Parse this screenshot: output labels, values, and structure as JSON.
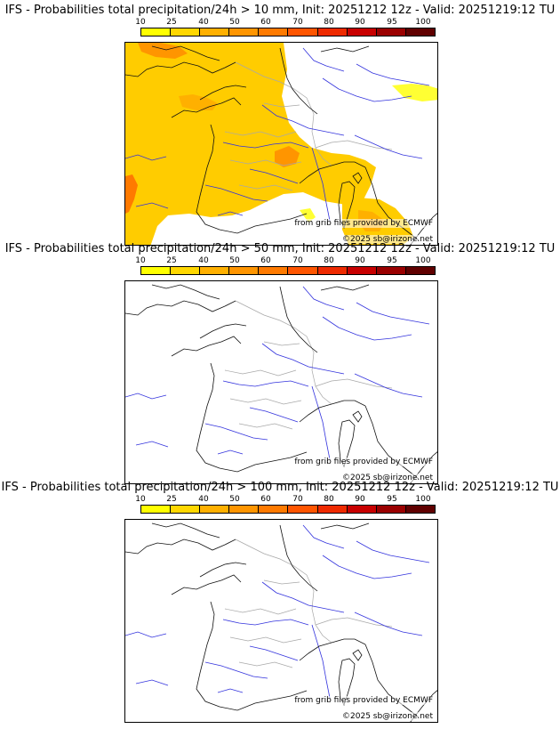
{
  "colorbar": {
    "labels": [
      "10",
      "25",
      "40",
      "50",
      "60",
      "70",
      "80",
      "90",
      "95",
      "100"
    ],
    "colors": [
      "#ffff00",
      "#ffd700",
      "#ffb000",
      "#ff9500",
      "#ff7a00",
      "#ff5500",
      "#ee2a00",
      "#c80000",
      "#9a0000",
      "#600000"
    ]
  },
  "panels": [
    {
      "title": "IFS - Probabilities total precipitation/24h > 10 mm, Init: 20251212 12z - Valid: 20251219:12 TU",
      "source_credit": "from grib files provided by ECMWF",
      "copyright": "©2025 sb@irizone.net",
      "has_precip": true
    },
    {
      "title": "IFS - Probabilities total precipitation/24h > 50 mm, Init: 20251212 12z - Valid: 20251219:12 TU",
      "source_credit": "from grib files provided by ECMWF",
      "copyright": "©2025 sb@irizone.net",
      "has_precip": false
    },
    {
      "title": "IFS - Probabilities total precipitation/24h > 100 mm, Init: 20251212 12z - Valid: 20251219:12 TU",
      "source_credit": "from grib files provided by ECMWF",
      "copyright": "©2025 sb@irizone.net",
      "has_precip": false
    }
  ]
}
